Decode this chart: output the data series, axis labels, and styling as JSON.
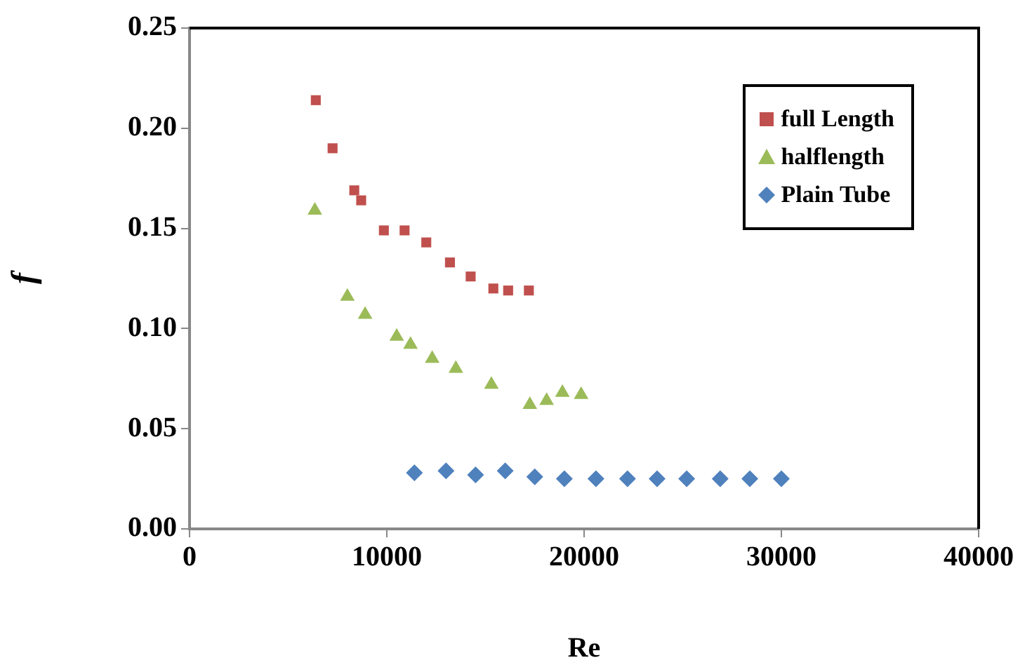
{
  "chart_data": {
    "type": "scatter",
    "xlabel": "Re",
    "ylabel": "f",
    "xlim": [
      0,
      40000
    ],
    "xticks": [
      0,
      10000,
      20000,
      30000,
      40000
    ],
    "ylim": [
      0,
      0.25
    ],
    "yticks": [
      {
        "value": 0,
        "label": "0.00"
      },
      {
        "value": 0.05,
        "label": "0.05"
      },
      {
        "value": 0.1,
        "label": "0.10"
      },
      {
        "value": 0.15,
        "label": "0.15"
      },
      {
        "value": 0.2,
        "label": "0.20"
      },
      {
        "value": 0.25,
        "label": "0.25"
      }
    ],
    "grid": false,
    "legend": "top right",
    "series": [
      {
        "name": "full Length",
        "color": "#c0504d",
        "marker": "square",
        "x": [
          6400,
          7250,
          8350,
          8700,
          9850,
          10900,
          12000,
          13200,
          14250,
          15400,
          16150,
          17200
        ],
        "values": [
          0.214,
          0.19,
          0.169,
          0.164,
          0.149,
          0.149,
          0.143,
          0.133,
          0.126,
          0.12,
          0.119,
          0.119
        ]
      },
      {
        "name": "halflength",
        "color": "#9bbb59",
        "marker": "triangle",
        "x": [
          6350,
          8000,
          8900,
          10500,
          11200,
          12300,
          13500,
          15300,
          17250,
          18100,
          18900,
          19850
        ],
        "values": [
          0.159,
          0.116,
          0.107,
          0.096,
          0.092,
          0.085,
          0.08,
          0.072,
          0.062,
          0.064,
          0.068,
          0.067
        ]
      },
      {
        "name": "Plain Tube",
        "color": "#4f81bd",
        "marker": "diamond",
        "x": [
          11400,
          13000,
          14500,
          16000,
          17500,
          19000,
          20600,
          22200,
          23700,
          25200,
          26900,
          28400,
          30000
        ],
        "values": [
          0.028,
          0.029,
          0.027,
          0.029,
          0.026,
          0.025,
          0.025,
          0.025,
          0.025,
          0.025,
          0.025,
          0.025,
          0.025
        ]
      }
    ]
  }
}
